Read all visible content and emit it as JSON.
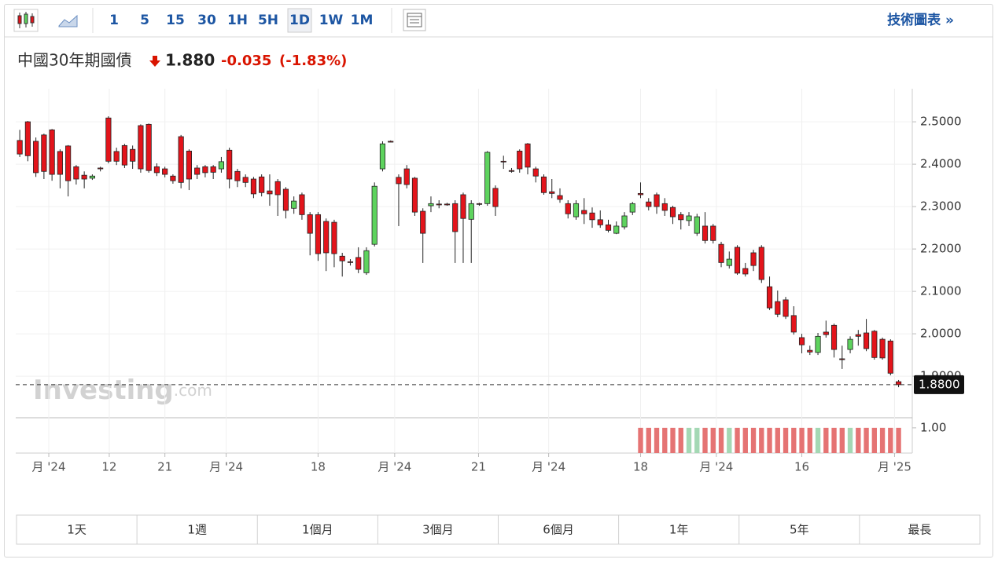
{
  "toolbar": {
    "intervals": [
      "1",
      "5",
      "15",
      "30",
      "1H",
      "5H",
      "1D",
      "1W",
      "1M"
    ],
    "active": 6,
    "tech_chart": "技術圖表 »"
  },
  "header": {
    "name": "中國30年期國債",
    "price": "1.880",
    "change": "-0.035",
    "change_pct": "(-1.83%)"
  },
  "watermark": {
    "brand": "Investing",
    "domain": ".com"
  },
  "range_buttons": [
    "1天",
    "1週",
    "1個月",
    "3個月",
    "6個月",
    "1年",
    "5年",
    "最長"
  ],
  "chart_data": {
    "type": "candlestick",
    "up_color": "#5ed35e",
    "down_color": "#e3141b",
    "xlim": [
      -0.5,
      110.7
    ],
    "ylim": [
      1.802,
      2.578
    ],
    "grid": true,
    "xticks": [
      {
        "value": 3.6,
        "label": "月 '24"
      },
      {
        "value": 11.1,
        "label": "12"
      },
      {
        "value": 18,
        "label": "21"
      },
      {
        "value": 25.6,
        "label": "月 '24"
      },
      {
        "value": 37,
        "label": "18"
      },
      {
        "value": 46.5,
        "label": "月 '24"
      },
      {
        "value": 56.9,
        "label": "21"
      },
      {
        "value": 65.6,
        "label": "月 '24"
      },
      {
        "value": 77,
        "label": "18"
      },
      {
        "value": 86.4,
        "label": "月 '24"
      },
      {
        "value": 97,
        "label": "16"
      },
      {
        "value": 108.5,
        "label": "月 '25"
      }
    ],
    "yticks": [
      {
        "value": 1.9,
        "label": "1.9000"
      },
      {
        "value": 2.0,
        "label": "2.0000"
      },
      {
        "value": 2.1,
        "label": "2.1000"
      },
      {
        "value": 2.2,
        "label": "2.2000"
      },
      {
        "value": 2.3,
        "label": "2.3000"
      },
      {
        "value": 2.4,
        "label": "2.4000"
      },
      {
        "value": 2.5,
        "label": "2.5000"
      }
    ],
    "current_price": {
      "value": 1.88,
      "label": "1.8800"
    },
    "open": [
      2.456,
      2.5,
      2.454,
      2.469,
      2.481,
      2.43,
      2.443,
      2.394,
      2.374,
      2.367,
      2.391,
      2.509,
      2.43,
      2.444,
      2.435,
      2.491,
      2.494,
      2.394,
      2.389,
      2.372,
      2.465,
      2.431,
      2.391,
      2.394,
      2.394,
      2.389,
      2.433,
      2.383,
      2.369,
      2.365,
      2.37,
      2.337,
      2.359,
      2.341,
      2.296,
      2.328,
      2.281,
      2.281,
      2.265,
      2.263,
      2.183,
      2.17,
      2.18,
      2.144,
      2.211,
      2.389,
      2.454,
      2.369,
      2.389,
      2.367,
      2.289,
      2.302,
      2.306,
      2.306,
      2.307,
      2.328,
      2.27,
      2.307,
      2.307,
      2.343,
      2.407,
      2.385,
      2.431,
      2.448,
      2.389,
      2.37,
      2.335,
      2.326,
      2.307,
      2.276,
      2.291,
      2.285,
      2.269,
      2.257,
      2.237,
      2.252,
      2.287,
      2.331,
      2.311,
      2.328,
      2.307,
      2.298,
      2.281,
      2.267,
      2.237,
      2.254,
      2.254,
      2.211,
      2.161,
      2.204,
      2.154,
      2.191,
      2.204,
      2.111,
      2.076,
      2.08,
      2.043,
      1.991,
      1.961,
      1.956,
      2.004,
      2.02,
      1.941,
      1.963,
      1.998,
      2.002,
      2.006,
      1.987,
      1.983,
      1.887
    ],
    "high": [
      2.481,
      2.502,
      2.463,
      2.472,
      2.483,
      2.435,
      2.445,
      2.398,
      2.383,
      2.376,
      2.394,
      2.513,
      2.439,
      2.448,
      2.444,
      2.494,
      2.496,
      2.402,
      2.394,
      2.376,
      2.469,
      2.435,
      2.398,
      2.398,
      2.398,
      2.417,
      2.439,
      2.389,
      2.376,
      2.37,
      2.376,
      2.376,
      2.365,
      2.346,
      2.324,
      2.333,
      2.287,
      2.287,
      2.272,
      2.269,
      2.191,
      2.176,
      2.204,
      2.204,
      2.357,
      2.454,
      2.456,
      2.376,
      2.398,
      2.37,
      2.296,
      2.324,
      2.315,
      2.309,
      2.315,
      2.333,
      2.315,
      2.309,
      2.431,
      2.35,
      2.42,
      2.391,
      2.435,
      2.45,
      2.394,
      2.376,
      2.365,
      2.343,
      2.315,
      2.315,
      2.32,
      2.298,
      2.291,
      2.269,
      2.265,
      2.287,
      2.311,
      2.357,
      2.32,
      2.333,
      2.32,
      2.302,
      2.287,
      2.287,
      2.283,
      2.287,
      2.259,
      2.217,
      2.194,
      2.209,
      2.167,
      2.198,
      2.209,
      2.135,
      2.102,
      2.087,
      2.065,
      2.0,
      1.972,
      2.002,
      2.031,
      2.024,
      1.972,
      1.994,
      2.009,
      2.035,
      2.009,
      1.991,
      1.987,
      1.891
    ],
    "low": [
      2.417,
      2.407,
      2.37,
      2.365,
      2.361,
      2.343,
      2.324,
      2.352,
      2.343,
      2.363,
      2.383,
      2.402,
      2.398,
      2.391,
      2.389,
      2.38,
      2.38,
      2.372,
      2.369,
      2.354,
      2.343,
      2.339,
      2.365,
      2.369,
      2.365,
      2.38,
      2.343,
      2.346,
      2.346,
      2.32,
      2.324,
      2.302,
      2.278,
      2.272,
      2.283,
      2.269,
      2.185,
      2.172,
      2.148,
      2.157,
      2.135,
      2.161,
      2.143,
      2.139,
      2.206,
      2.383,
      2.452,
      2.254,
      2.343,
      2.278,
      2.167,
      2.287,
      2.296,
      2.302,
      2.167,
      2.167,
      2.167,
      2.302,
      2.302,
      2.278,
      2.389,
      2.38,
      2.38,
      2.376,
      2.357,
      2.328,
      2.32,
      2.309,
      2.272,
      2.269,
      2.259,
      2.25,
      2.25,
      2.239,
      2.235,
      2.246,
      2.28,
      2.32,
      2.291,
      2.283,
      2.278,
      2.259,
      2.246,
      2.254,
      2.231,
      2.213,
      2.213,
      2.157,
      2.154,
      2.139,
      2.135,
      2.148,
      2.12,
      2.056,
      2.039,
      2.035,
      1.998,
      1.954,
      1.95,
      1.95,
      1.991,
      1.944,
      1.917,
      1.954,
      1.972,
      1.959,
      1.939,
      1.939,
      1.902,
      1.874
    ],
    "close": [
      2.424,
      2.42,
      2.38,
      2.383,
      2.376,
      2.376,
      2.361,
      2.365,
      2.365,
      2.372,
      2.389,
      2.407,
      2.407,
      2.398,
      2.407,
      2.389,
      2.385,
      2.38,
      2.376,
      2.361,
      2.357,
      2.365,
      2.376,
      2.38,
      2.381,
      2.406,
      2.365,
      2.361,
      2.357,
      2.33,
      2.333,
      2.33,
      2.328,
      2.291,
      2.313,
      2.281,
      2.237,
      2.189,
      2.191,
      2.189,
      2.172,
      2.168,
      2.152,
      2.196,
      2.348,
      2.448,
      2.452,
      2.354,
      2.352,
      2.287,
      2.237,
      2.307,
      2.304,
      2.304,
      2.241,
      2.272,
      2.307,
      2.306,
      2.428,
      2.3,
      2.406,
      2.383,
      2.389,
      2.393,
      2.372,
      2.333,
      2.331,
      2.317,
      2.283,
      2.307,
      2.283,
      2.269,
      2.257,
      2.244,
      2.254,
      2.278,
      2.307,
      2.328,
      2.3,
      2.3,
      2.291,
      2.276,
      2.269,
      2.278,
      2.276,
      2.22,
      2.22,
      2.168,
      2.176,
      2.143,
      2.141,
      2.161,
      2.128,
      2.061,
      2.046,
      2.041,
      2.004,
      1.974,
      1.957,
      1.994,
      1.998,
      1.963,
      1.939,
      1.987,
      1.994,
      1.965,
      1.944,
      1.943,
      1.907,
      1.88
    ],
    "volume": {
      "ylim": [
        0,
        1.4
      ],
      "yticks": [
        {
          "value": 1,
          "label": "1.00"
        }
      ],
      "up_color": "#a4d8b4",
      "down_color": "#e57373",
      "values": [
        null,
        null,
        null,
        null,
        null,
        null,
        null,
        null,
        null,
        null,
        null,
        null,
        null,
        null,
        null,
        null,
        null,
        null,
        null,
        null,
        null,
        null,
        null,
        null,
        null,
        null,
        null,
        null,
        null,
        null,
        null,
        null,
        null,
        null,
        null,
        null,
        null,
        null,
        null,
        null,
        null,
        null,
        null,
        null,
        null,
        null,
        null,
        null,
        null,
        null,
        null,
        null,
        null,
        null,
        null,
        null,
        null,
        null,
        null,
        null,
        null,
        null,
        null,
        null,
        null,
        null,
        null,
        null,
        null,
        null,
        null,
        null,
        null,
        null,
        null,
        null,
        null,
        1,
        1,
        1,
        1,
        1,
        1,
        1,
        1,
        1,
        1,
        1,
        1,
        1,
        1,
        1,
        1,
        1,
        1,
        1,
        1,
        1,
        1,
        1,
        1,
        1,
        1,
        1,
        1,
        1,
        1,
        1,
        1,
        1
      ]
    }
  }
}
